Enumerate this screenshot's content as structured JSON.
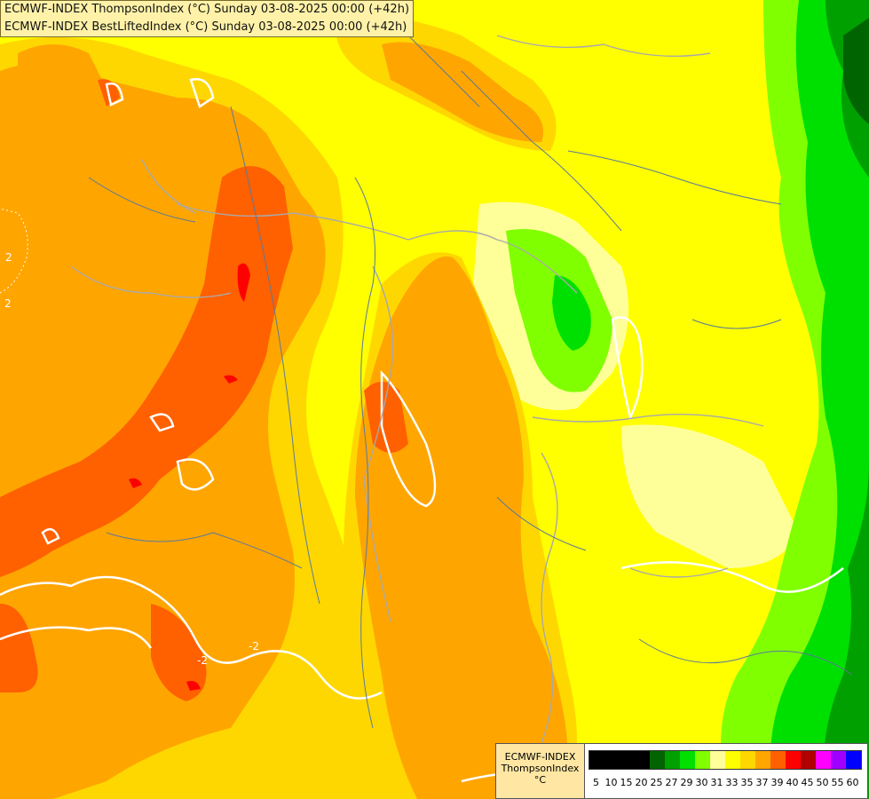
{
  "titles": [
    "ECMWF-INDEX ThompsonIndex (°C) Sunday 03-08-2025 00:00 (+42h)",
    "ECMWF-INDEX BestLiftedIndex (°C) Sunday 03-08-2025 00:00 (+42h)"
  ],
  "contour_labels": [
    "2",
    "2",
    "-2",
    "-2"
  ],
  "legend": {
    "model": "ECMWF-INDEX",
    "parameter": "ThompsonIndex",
    "unit": "°C",
    "classes": [
      {
        "value": "5",
        "color": "#000000"
      },
      {
        "value": "10",
        "color": "#000000"
      },
      {
        "value": "15",
        "color": "#000000"
      },
      {
        "value": "20",
        "color": "#000000"
      },
      {
        "value": "25",
        "color": "#006400"
      },
      {
        "value": "27",
        "color": "#00a000"
      },
      {
        "value": "29",
        "color": "#00e000"
      },
      {
        "value": "30",
        "color": "#80ff00"
      },
      {
        "value": "31",
        "color": "#ffff99"
      },
      {
        "value": "33",
        "color": "#ffff00"
      },
      {
        "value": "35",
        "color": "#ffd700"
      },
      {
        "value": "37",
        "color": "#ffa500"
      },
      {
        "value": "39",
        "color": "#ff6000"
      },
      {
        "value": "40",
        "color": "#ff0000"
      },
      {
        "value": "45",
        "color": "#b00000"
      },
      {
        "value": "50",
        "color": "#ff00ff"
      },
      {
        "value": "55",
        "color": "#a000ff"
      },
      {
        "value": "60",
        "color": "#0000ff"
      }
    ]
  }
}
